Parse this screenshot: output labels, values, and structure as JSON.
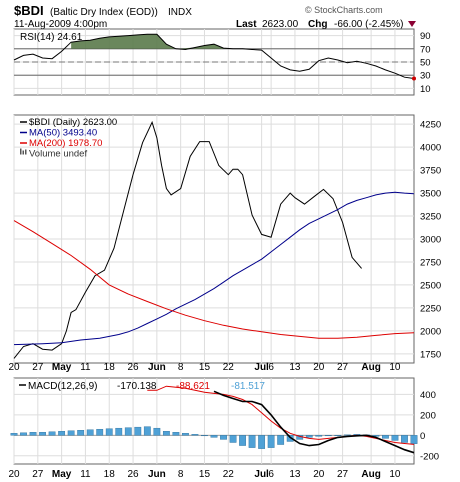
{
  "header": {
    "symbol": "$BDI",
    "name": "(Baltic Dry Index (EOD))",
    "exchange": "INDX",
    "date": "11-Aug-2009 4:00pm",
    "last_label": "Last",
    "last_value": "2623.00",
    "chg_label": "Chg",
    "chg_value": "-66.00 (-2.45%)",
    "watermark": "© StockCharts.com"
  },
  "colors": {
    "price": "#000000",
    "ma50": "#00008b",
    "ma200": "#dd0000",
    "rsi_fill": "#5a7a4a",
    "macd_hist": "#4fa1d6",
    "chg_down": "#8b0033"
  },
  "chart_data": [
    {
      "type": "line",
      "panel": "rsi",
      "legend": "RSI(14) 24.61",
      "y_ticks": [
        "90",
        "70",
        "50",
        "30",
        "10"
      ],
      "ylim": [
        0,
        100
      ],
      "reference_lines": [
        70,
        50,
        30
      ],
      "series": [
        {
          "name": "RSI(14)",
          "x": [
            0,
            2,
            4,
            6,
            8,
            10,
            12,
            14,
            16,
            18,
            20,
            22,
            24,
            26,
            28,
            30,
            32,
            34,
            36,
            38,
            40,
            42,
            44,
            46,
            48,
            50,
            52,
            54,
            56,
            58,
            60,
            62,
            64,
            66,
            68,
            70,
            72,
            74,
            76,
            78,
            80,
            82,
            84
          ],
          "values": [
            53,
            60,
            62,
            56,
            55,
            66,
            80,
            82,
            83,
            86,
            88,
            89,
            90,
            91,
            92,
            92,
            77,
            70,
            69,
            72,
            75,
            77,
            71,
            70,
            70,
            69,
            68,
            56,
            44,
            38,
            36,
            39,
            52,
            56,
            53,
            49,
            51,
            48,
            44,
            38,
            33,
            27,
            25
          ]
        }
      ]
    },
    {
      "type": "line",
      "panel": "price",
      "legend": [
        {
          "label": "$BDI (Daily) 2623.00",
          "color": "#000000"
        },
        {
          "label": "MA(50) 3493.40",
          "color": "#00008b"
        },
        {
          "label": "MA(200) 1978.70",
          "color": "#dd0000"
        },
        {
          "label": "Volume undef",
          "color": "#333333"
        }
      ],
      "y_ticks": [
        "4250",
        "4000",
        "3750",
        "3500",
        "3250",
        "3000",
        "2750",
        "2500",
        "2250",
        "2000",
        "1750"
      ],
      "ylim": [
        1650,
        4350
      ],
      "series": [
        {
          "name": "$BDI (Daily)",
          "x": [
            0,
            2,
            4,
            6,
            8,
            10,
            11,
            12,
            13,
            15,
            17,
            19,
            21,
            23,
            25,
            27,
            29,
            30,
            31,
            32,
            33,
            35,
            37,
            39,
            41,
            43,
            45,
            46,
            47,
            48,
            50,
            52,
            54,
            56,
            58,
            59,
            61,
            63,
            65,
            67,
            69,
            71,
            73,
            75,
            77,
            79,
            81,
            83,
            84
          ],
          "values": [
            1700,
            1830,
            1860,
            1800,
            1790,
            1860,
            2000,
            2200,
            2230,
            2420,
            2600,
            2660,
            2900,
            3300,
            3700,
            4050,
            4270,
            4100,
            3800,
            3550,
            3480,
            3550,
            3900,
            4060,
            4060,
            3800,
            3700,
            3760,
            3760,
            3700,
            3260,
            3050,
            3020,
            3380,
            3500,
            3450,
            3380,
            3460,
            3540,
            3440,
            3180,
            2800,
            2680,
            null,
            null,
            null,
            null,
            null,
            null
          ]
        },
        {
          "name": "MA(50)",
          "x": [
            0,
            6,
            10,
            14,
            18,
            22,
            24,
            26,
            28,
            30,
            32,
            34,
            36,
            38,
            40,
            42,
            44,
            46,
            48,
            50,
            52,
            54,
            56,
            58,
            60,
            62,
            64,
            66,
            68,
            70,
            72,
            74,
            76,
            78,
            80,
            82,
            84
          ],
          "values": [
            1850,
            1860,
            1870,
            1900,
            1920,
            1960,
            1990,
            2030,
            2080,
            2130,
            2180,
            2240,
            2290,
            2340,
            2400,
            2460,
            2530,
            2600,
            2660,
            2720,
            2780,
            2860,
            2940,
            3020,
            3100,
            3170,
            3220,
            3270,
            3320,
            3380,
            3420,
            3450,
            3480,
            3500,
            3510,
            3500,
            3493
          ]
        },
        {
          "name": "MA(200)",
          "x": [
            0,
            4,
            8,
            12,
            16,
            20,
            24,
            28,
            32,
            36,
            40,
            44,
            48,
            52,
            56,
            60,
            64,
            68,
            72,
            76,
            80,
            84
          ],
          "values": [
            3200,
            3080,
            2950,
            2820,
            2670,
            2500,
            2400,
            2320,
            2240,
            2170,
            2110,
            2060,
            2020,
            1990,
            1960,
            1940,
            1920,
            1920,
            1930,
            1950,
            1970,
            1979
          ]
        }
      ]
    },
    {
      "type": "bar",
      "panel": "macd",
      "legend": [
        {
          "label": "MACD(12,26,9)",
          "color": "#000000"
        },
        {
          "label": "-170.138",
          "color": "#000000"
        },
        {
          "label": "-88.621",
          "color": "#dd0000"
        },
        {
          "label": "-81.517",
          "color": "#4fa1d6"
        }
      ],
      "y_ticks": [
        "400",
        "200",
        "0",
        "-200"
      ],
      "ylim": [
        -280,
        560
      ],
      "series": [
        {
          "name": "MACD",
          "x": [
            0,
            4,
            8,
            12,
            16,
            20,
            24,
            28,
            32,
            34,
            36,
            38,
            40,
            42,
            44,
            46,
            48,
            50,
            52,
            54,
            56,
            58,
            60,
            62,
            64,
            66,
            68,
            70,
            72,
            74,
            76,
            78,
            80,
            82,
            84
          ],
          "values": [
            null,
            null,
            null,
            null,
            null,
            null,
            null,
            null,
            null,
            null,
            null,
            null,
            null,
            430,
            390,
            360,
            330,
            330,
            300,
            200,
            80,
            -20,
            -80,
            -100,
            -90,
            -50,
            -20,
            -10,
            -5,
            0,
            -20,
            -60,
            -100,
            -140,
            -170
          ]
        },
        {
          "name": "Signal",
          "x": [
            28,
            30,
            32,
            34,
            36,
            38,
            40,
            42,
            44,
            46,
            48,
            50,
            52,
            54,
            56,
            58,
            60,
            62,
            64,
            66,
            68,
            70,
            72,
            74,
            76,
            78,
            80,
            82,
            84
          ],
          "values": [
            440,
            440,
            480,
            470,
            460,
            440,
            420,
            410,
            400,
            380,
            350,
            300,
            220,
            140,
            70,
            20,
            -10,
            -30,
            -40,
            -30,
            -20,
            -10,
            0,
            -10,
            -30,
            -50,
            -70,
            -80,
            -89
          ]
        },
        {
          "name": "Histogram",
          "x": [
            0,
            2,
            4,
            6,
            8,
            10,
            12,
            14,
            16,
            18,
            20,
            22,
            24,
            26,
            28,
            30,
            32,
            34,
            36,
            38,
            40,
            42,
            44,
            46,
            48,
            50,
            52,
            54,
            56,
            58,
            60,
            62,
            64,
            66,
            68,
            70,
            72,
            74,
            76,
            78,
            80,
            82,
            84
          ],
          "values": [
            20,
            25,
            30,
            30,
            35,
            40,
            45,
            50,
            55,
            60,
            65,
            70,
            75,
            80,
            85,
            70,
            40,
            30,
            20,
            10,
            0,
            -20,
            -40,
            -70,
            -100,
            -120,
            -130,
            -120,
            -90,
            -60,
            -40,
            -20,
            -10,
            -5,
            0,
            5,
            10,
            5,
            -10,
            -30,
            -50,
            -70,
            -82
          ]
        }
      ]
    }
  ],
  "x_axis": {
    "labels": [
      {
        "text": "20",
        "x": 0
      },
      {
        "text": "27",
        "x": 5
      },
      {
        "text": "May",
        "x": 10
      },
      {
        "text": "11",
        "x": 15
      },
      {
        "text": "18",
        "x": 20
      },
      {
        "text": "26",
        "x": 25
      },
      {
        "text": "Jun",
        "x": 30
      },
      {
        "text": "8",
        "x": 35
      },
      {
        "text": "15",
        "x": 40
      },
      {
        "text": "22",
        "x": 45
      },
      {
        "text": "Jul",
        "x": 52
      },
      {
        "text": "6",
        "x": 54
      },
      {
        "text": "13",
        "x": 59
      },
      {
        "text": "20",
        "x": 64
      },
      {
        "text": "27",
        "x": 69
      },
      {
        "text": "Aug",
        "x": 75
      },
      {
        "text": "10",
        "x": 80
      }
    ],
    "xlim": [
      0,
      84
    ]
  }
}
